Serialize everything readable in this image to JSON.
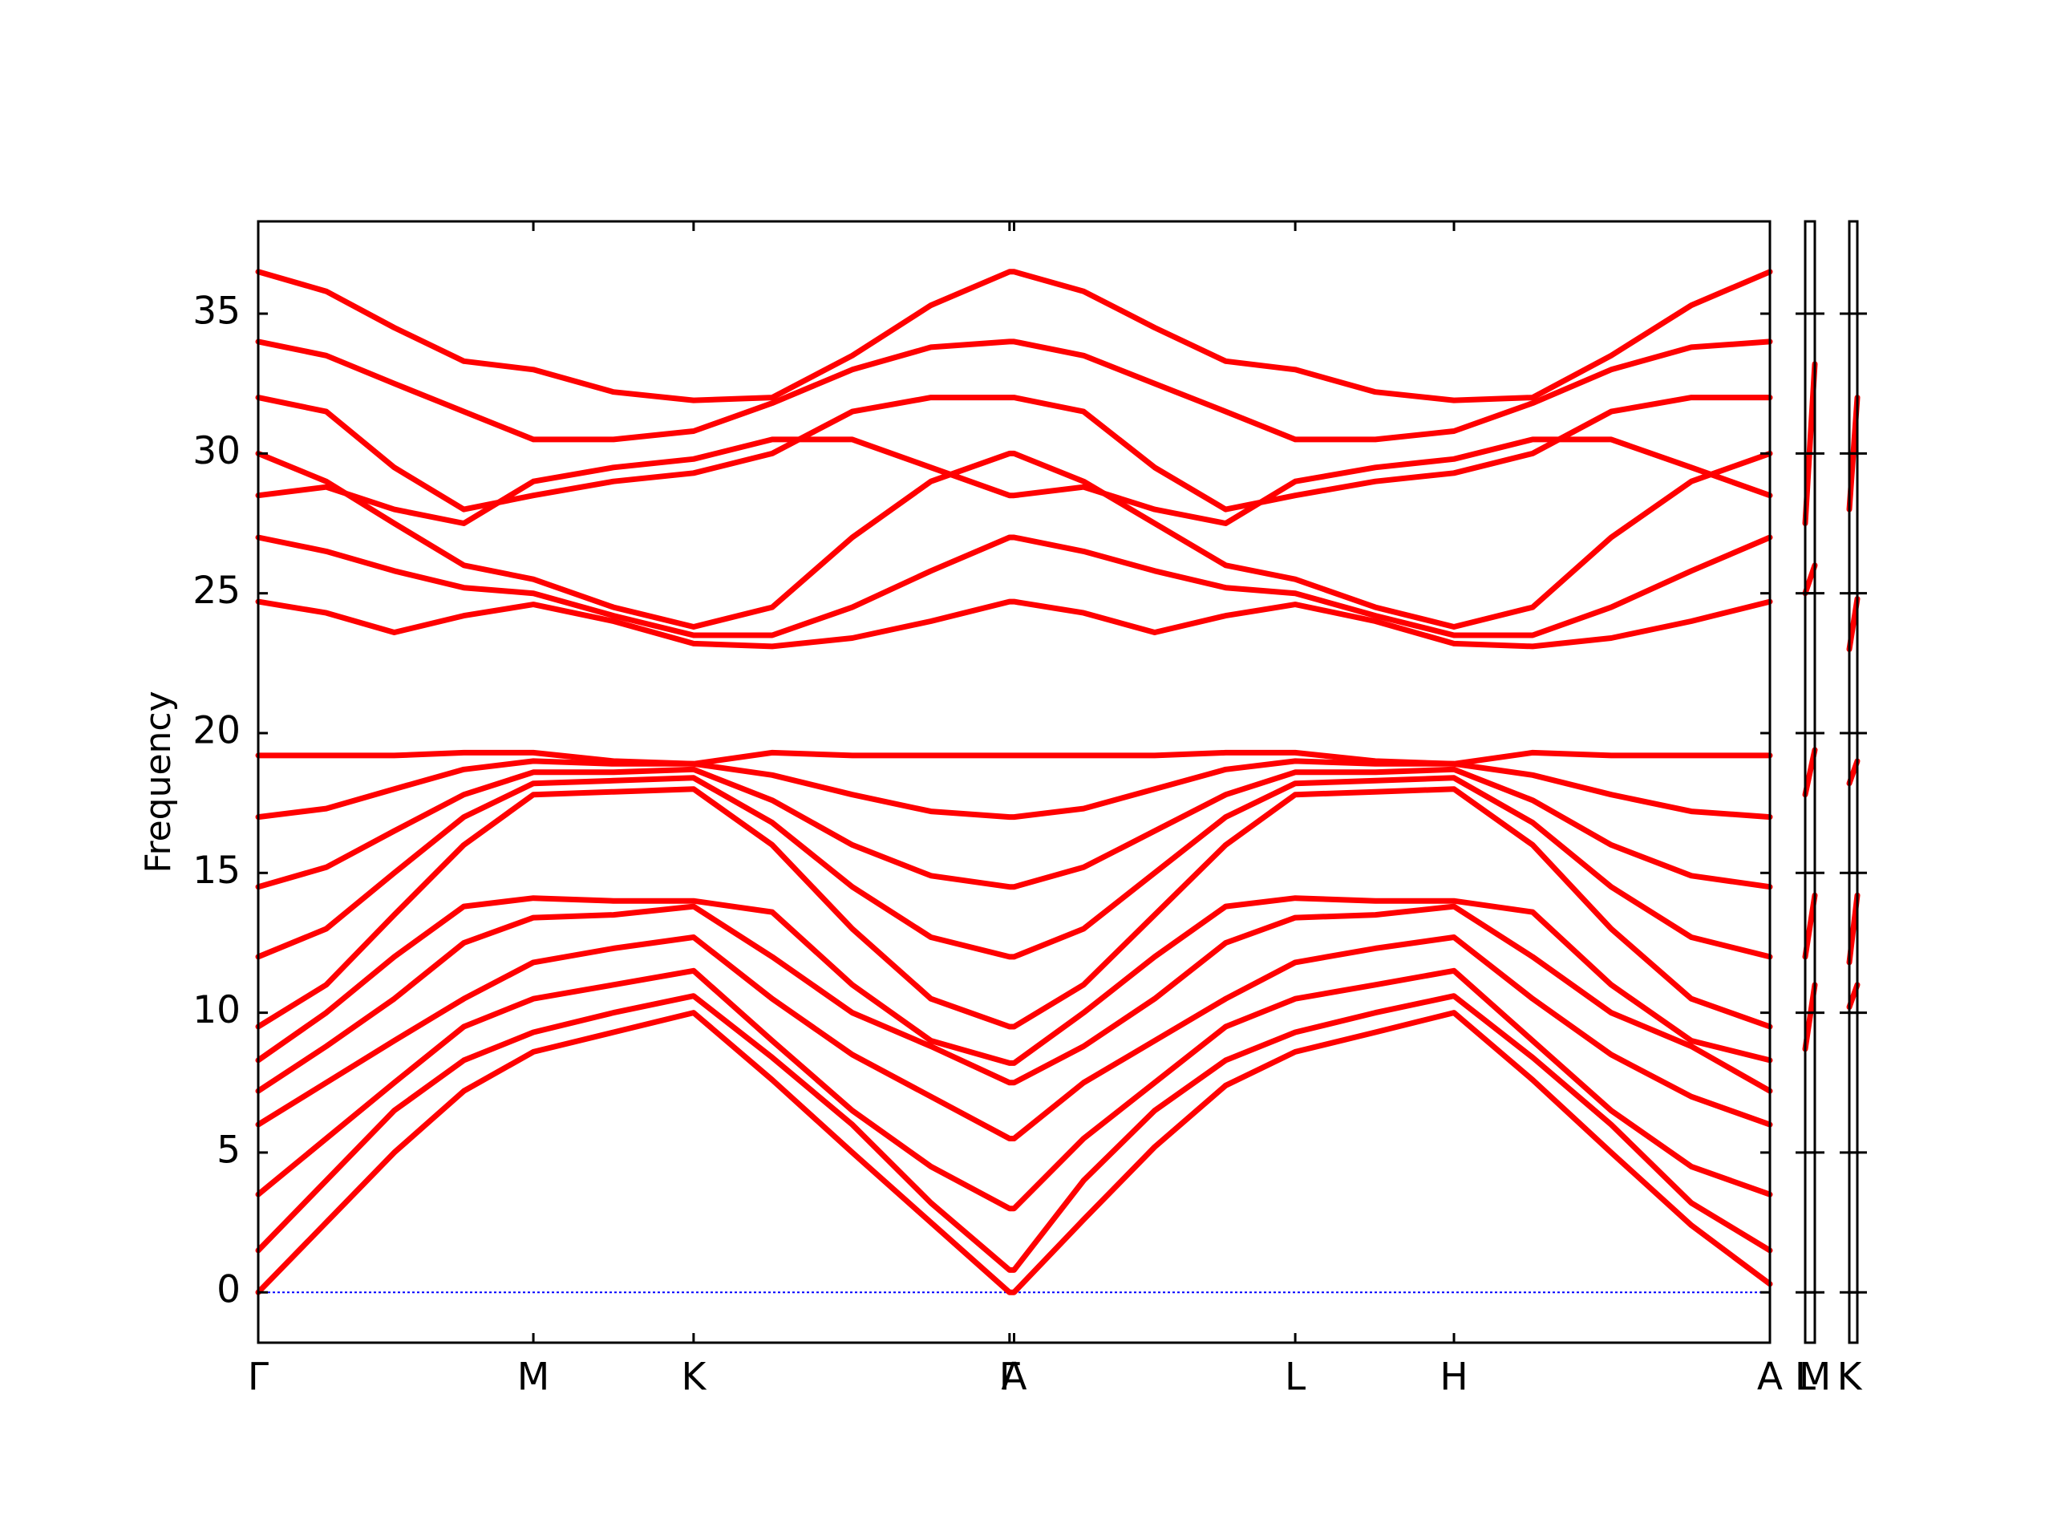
{
  "chart_data": [
    {
      "type": "line",
      "ylabel": "Frequency",
      "color": "#ff0000",
      "x": [
        0,
        0.045,
        0.09,
        0.136,
        0.182,
        0.235,
        0.288,
        0.34,
        0.393,
        0.445,
        0.497,
        0.5,
        0.546,
        0.593,
        0.64,
        0.686,
        0.739,
        0.791,
        0.843,
        0.895,
        0.948,
        1.0
      ],
      "xlim": [
        0,
        1.0
      ],
      "xticks": [
        {
          "value": 0,
          "label": "Γ"
        },
        {
          "value": 0.182,
          "label": "M"
        },
        {
          "value": 0.288,
          "label": "K"
        },
        {
          "value": 0.497,
          "label": "Γ"
        },
        {
          "value": 0.5,
          "label": "A"
        },
        {
          "value": 0.686,
          "label": "L"
        },
        {
          "value": 0.791,
          "label": "H"
        },
        {
          "value": 1.0,
          "label": "A"
        }
      ],
      "ylim": [
        -1.8,
        38.3
      ],
      "yticks": [
        0,
        5,
        10,
        15,
        20,
        25,
        30,
        35
      ],
      "hlines": [
        0
      ],
      "hline_color": "#0000ff",
      "series": [
        {
          "values": [
            0,
            2.5,
            5.0,
            7.2,
            8.6,
            9.3,
            10.0,
            7.6,
            5.0,
            2.5,
            0,
            0,
            2.6,
            5.2,
            7.4,
            8.6,
            9.3,
            10.0,
            7.6,
            5.0,
            2.4,
            0.3
          ]
        },
        {
          "values": [
            1.5,
            4.0,
            6.5,
            8.3,
            9.3,
            10.0,
            10.6,
            8.4,
            6.0,
            3.2,
            0.8,
            0.8,
            4.0,
            6.5,
            8.3,
            9.3,
            10.0,
            10.6,
            8.4,
            6.0,
            3.2,
            1.5
          ]
        },
        {
          "values": [
            3.5,
            5.5,
            7.5,
            9.5,
            10.5,
            11.0,
            11.5,
            9.0,
            6.5,
            4.5,
            3.0,
            3.0,
            5.5,
            7.5,
            9.5,
            10.5,
            11.0,
            11.5,
            9.0,
            6.5,
            4.5,
            3.5
          ]
        },
        {
          "values": [
            6.0,
            7.5,
            9.0,
            10.5,
            11.8,
            12.3,
            12.7,
            10.5,
            8.5,
            7.0,
            5.5,
            5.5,
            7.5,
            9.0,
            10.5,
            11.8,
            12.3,
            12.7,
            10.5,
            8.5,
            7.0,
            6.0
          ]
        },
        {
          "values": [
            7.2,
            8.8,
            10.5,
            12.5,
            13.4,
            13.5,
            13.8,
            12.0,
            10.0,
            8.8,
            7.5,
            7.5,
            8.8,
            10.5,
            12.5,
            13.4,
            13.5,
            13.8,
            12.0,
            10.0,
            8.8,
            7.2
          ]
        },
        {
          "values": [
            8.3,
            10.0,
            12.0,
            13.8,
            14.1,
            14.0,
            14.0,
            13.6,
            11.0,
            9.0,
            8.2,
            8.2,
            10.0,
            12.0,
            13.8,
            14.1,
            14.0,
            14.0,
            13.6,
            11.0,
            9.0,
            8.3
          ]
        },
        {
          "values": [
            9.5,
            11.0,
            13.5,
            16.0,
            17.8,
            17.9,
            18.0,
            16.0,
            13.0,
            10.5,
            9.5,
            9.5,
            11.0,
            13.5,
            16.0,
            17.8,
            17.9,
            18.0,
            16.0,
            13.0,
            10.5,
            9.5
          ]
        },
        {
          "values": [
            12.0,
            13.0,
            15.0,
            17.0,
            18.2,
            18.3,
            18.4,
            16.8,
            14.5,
            12.7,
            12.0,
            12.0,
            13.0,
            15.0,
            17.0,
            18.2,
            18.3,
            18.4,
            16.8,
            14.5,
            12.7,
            12.0
          ]
        },
        {
          "values": [
            14.5,
            15.2,
            16.5,
            17.8,
            18.6,
            18.6,
            18.7,
            17.6,
            16.0,
            14.9,
            14.5,
            14.5,
            15.2,
            16.5,
            17.8,
            18.6,
            18.6,
            18.7,
            17.6,
            16.0,
            14.9,
            14.5
          ]
        },
        {
          "values": [
            17.0,
            17.3,
            18.0,
            18.7,
            19.0,
            18.9,
            18.9,
            18.5,
            17.8,
            17.2,
            17.0,
            17.0,
            17.3,
            18.0,
            18.7,
            19.0,
            18.9,
            18.9,
            18.5,
            17.8,
            17.2,
            17.0
          ]
        },
        {
          "values": [
            19.2,
            19.2,
            19.2,
            19.3,
            19.3,
            19.0,
            18.9,
            19.3,
            19.2,
            19.2,
            19.2,
            19.2,
            19.2,
            19.2,
            19.3,
            19.3,
            19.0,
            18.9,
            19.3,
            19.2,
            19.2,
            19.2
          ]
        },
        {
          "values": [
            24.7,
            24.3,
            23.6,
            24.2,
            24.6,
            24.0,
            23.2,
            23.1,
            23.4,
            24.0,
            24.7,
            24.7,
            24.3,
            23.6,
            24.2,
            24.6,
            24.0,
            23.2,
            23.1,
            23.4,
            24.0,
            24.7
          ]
        },
        {
          "values": [
            27.0,
            26.5,
            25.8,
            25.2,
            25.0,
            24.2,
            23.5,
            23.5,
            24.5,
            25.8,
            27.0,
            27.0,
            26.5,
            25.8,
            25.2,
            25.0,
            24.2,
            23.5,
            23.5,
            24.5,
            25.8,
            27.0
          ]
        },
        {
          "values": [
            30.0,
            29.0,
            27.5,
            26.0,
            25.5,
            24.5,
            23.8,
            24.5,
            27.0,
            29.0,
            30.0,
            30.0,
            29.0,
            27.5,
            26.0,
            25.5,
            24.5,
            23.8,
            24.5,
            27.0,
            29.0,
            30.0
          ]
        },
        {
          "values": [
            28.5,
            28.8,
            28.0,
            27.5,
            29.0,
            29.5,
            29.8,
            30.5,
            30.5,
            29.5,
            28.5,
            28.5,
            28.8,
            28.0,
            27.5,
            29.0,
            29.5,
            29.8,
            30.5,
            30.5,
            29.5,
            28.5
          ]
        },
        {
          "values": [
            32.0,
            31.5,
            29.5,
            28.0,
            28.5,
            29.0,
            29.3,
            30.0,
            31.5,
            32.0,
            32.0,
            32.0,
            31.5,
            29.5,
            28.0,
            28.5,
            29.0,
            29.3,
            30.0,
            31.5,
            32.0,
            32.0
          ]
        },
        {
          "values": [
            34.0,
            33.5,
            32.5,
            31.5,
            30.5,
            30.5,
            30.8,
            31.8,
            33.0,
            33.8,
            34.0,
            34.0,
            33.5,
            32.5,
            31.5,
            30.5,
            30.5,
            30.8,
            31.8,
            33.0,
            33.8,
            34.0
          ]
        },
        {
          "values": [
            36.5,
            35.8,
            34.5,
            33.3,
            33.0,
            32.2,
            31.9,
            32.0,
            33.5,
            35.3,
            36.5,
            36.5,
            35.8,
            34.5,
            33.3,
            33.0,
            32.2,
            31.9,
            32.0,
            33.5,
            35.3,
            36.5
          ]
        }
      ]
    },
    {
      "type": "line",
      "color": "#ff0000",
      "x": [
        0,
        1
      ],
      "xlim": [
        0,
        1
      ],
      "xticks": [
        {
          "value": 0,
          "label": "L"
        },
        {
          "value": 1,
          "label": "M"
        }
      ],
      "ylim": [
        -1.8,
        38.3
      ],
      "yticks": [
        0,
        5,
        10,
        15,
        20,
        25,
        30,
        35
      ],
      "series": [
        {
          "values": [
            8.7,
            11.0
          ]
        },
        {
          "values": [
            12.0,
            14.2
          ]
        },
        {
          "values": [
            17.8,
            19.4
          ]
        },
        {
          "values": [
            25.0,
            26.0
          ]
        },
        {
          "values": [
            27.5,
            33.2
          ]
        }
      ]
    },
    {
      "type": "line",
      "color": "#ff0000",
      "x": [
        0,
        1
      ],
      "xlim": [
        0,
        1
      ],
      "xticks": [
        {
          "value": 0,
          "label": "K"
        }
      ],
      "ylim": [
        -1.8,
        38.3
      ],
      "yticks": [
        0,
        5,
        10,
        15,
        20,
        25,
        30,
        35
      ],
      "series": [
        {
          "values": [
            10.2,
            11.0
          ]
        },
        {
          "values": [
            11.8,
            14.2
          ]
        },
        {
          "values": [
            18.2,
            19.0
          ]
        },
        {
          "values": [
            23.0,
            24.8
          ]
        },
        {
          "values": [
            28.0,
            32.0
          ]
        }
      ]
    }
  ]
}
